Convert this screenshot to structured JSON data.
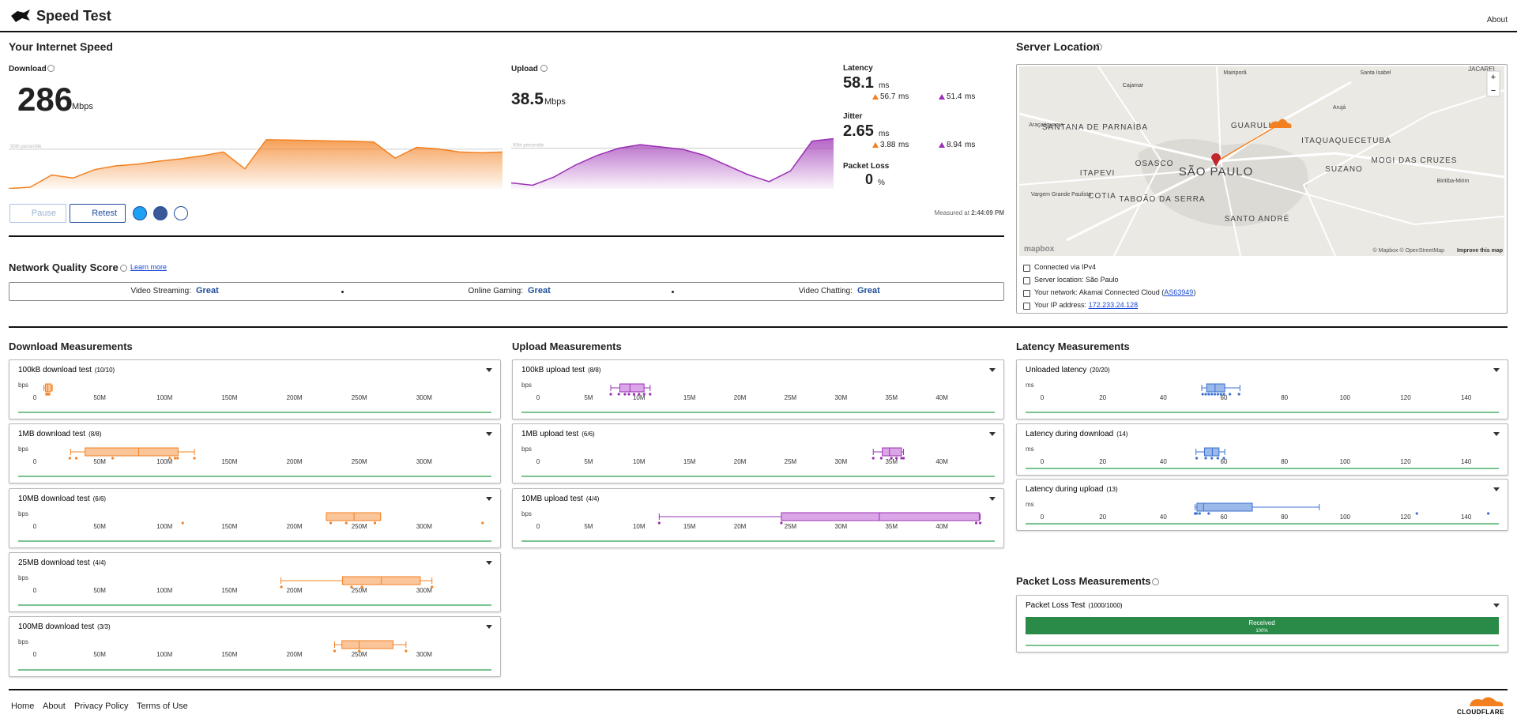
{
  "header": {
    "title": "Speed Test",
    "about": "About"
  },
  "speed": {
    "title": "Your Internet Speed",
    "download": {
      "label": "Download",
      "value": 286,
      "unit": "Mbps",
      "chart": {
        "type": "area",
        "color": "#f38020",
        "ylim": [
          0,
          350
        ],
        "percentile_label": "90th percentile",
        "percentile_value": 258,
        "values": [
          2,
          10,
          90,
          70,
          125,
          150,
          160,
          180,
          195,
          215,
          240,
          130,
          320,
          318,
          315,
          312,
          310,
          305,
          200,
          270,
          260,
          240,
          235,
          240
        ]
      }
    },
    "upload": {
      "label": "Upload",
      "value": 38.5,
      "unit": "Mbps",
      "chart": {
        "type": "area",
        "color": "#9b30b4",
        "ylim": [
          0,
          45
        ],
        "percentile_label": "90th percentile",
        "percentile_value": 34,
        "values": [
          5,
          3,
          10,
          20,
          28,
          34,
          37,
          35,
          33,
          28,
          20,
          12,
          6,
          15,
          40,
          42
        ]
      }
    },
    "latency": {
      "label": "Latency",
      "value": 58.1,
      "unit": "ms",
      "down": 56.7,
      "up": 51.4,
      "sub_unit": "ms"
    },
    "jitter": {
      "label": "Jitter",
      "value": 2.65,
      "unit": "ms",
      "down": 3.88,
      "up": 8.94,
      "sub_unit": "ms"
    },
    "packet_loss": {
      "label": "Packet Loss",
      "value": 0,
      "unit": "%"
    },
    "buttons": {
      "pause": "Pause",
      "retest": "Retest"
    },
    "measured_label": "Measured at",
    "measured_time": "2:44:09 PM"
  },
  "quality": {
    "title": "Network Quality Score",
    "learn_more": "Learn more",
    "items": [
      {
        "label": "Video Streaming:",
        "rating": "Great"
      },
      {
        "label": "Online Gaming:",
        "rating": "Great"
      },
      {
        "label": "Video Chatting:",
        "rating": "Great"
      }
    ]
  },
  "server": {
    "title": "Server Location",
    "map": {
      "places": [
        "SÃO PAULO",
        "GUARULHOS",
        "OSASCO",
        "ITAPEVI",
        "COTIA",
        "TABOÃO DA SERRA",
        "SANTANA DE PARNAÍBA",
        "ITAQUAQUECETUBA",
        "MOGI DAS CRUZES",
        "SUZANO",
        "SANTO ANDRÉ",
        "Cajamar",
        "Mairiporã",
        "Santa Isabel",
        "Arujá",
        "JACAREÍ",
        "Araçariguama",
        "Vargem Grande Paulista",
        "Biritiba-Mirim"
      ],
      "attribution": "© Mapbox © OpenStreetMap",
      "improve": "Improve this map",
      "logo": "mapbox",
      "zoom_in": "+",
      "zoom_out": "−"
    },
    "connected": "Connected via IPv4",
    "location": "Server location: São Paulo",
    "network_label": "Your network: Akamai Connected Cloud (",
    "network_asn": "AS63949",
    "network_close": ")",
    "ip_label": "Your IP address:",
    "ip": "172.233.24.128"
  },
  "download_measurements": {
    "title": "Download Measurements",
    "unit": "bps",
    "xlim": [
      0,
      350
    ],
    "xticks": [
      0,
      {
        "value": 50,
        "label": "50M"
      },
      {
        "value": 100,
        "label": "100M"
      },
      {
        "value": 150,
        "label": "150M"
      },
      {
        "value": 200,
        "label": "200M"
      },
      {
        "value": 250,
        "label": "250M"
      },
      {
        "value": 300,
        "label": "300M"
      }
    ],
    "tests": [
      {
        "name": "100kB download test",
        "count": "(10/10)",
        "whiskers": [
          7,
          13.5
        ],
        "box": [
          8.2,
          12.7
        ],
        "median": 10,
        "points": [
          9,
          10,
          11,
          10.5,
          9.5
        ]
      },
      {
        "name": "1MB download test",
        "count": "(8/8)",
        "whiskers": [
          27.6,
          123
        ],
        "box": [
          38.8,
          110.4
        ],
        "median": 80,
        "points": [
          27,
          32,
          60,
          104,
          108,
          110,
          123
        ]
      },
      {
        "name": "10MB download test",
        "count": "(6/6)",
        "whiskers": [
          224.6,
          266.4
        ],
        "box": [
          224.6,
          266.4
        ],
        "median": 246,
        "points": [
          114,
          228,
          240,
          262,
          345
        ]
      },
      {
        "name": "25MB download test",
        "count": "(4/4)",
        "whiskers": [
          189.6,
          306
        ],
        "box": [
          237,
          297
        ],
        "median": 267,
        "points": [
          190,
          244,
          252,
          306
        ]
      },
      {
        "name": "100MB download test",
        "count": "(3/3)",
        "whiskers": [
          231,
          286
        ],
        "box": [
          236.6,
          276
        ],
        "median": 250,
        "points": [
          231,
          250,
          286
        ]
      }
    ]
  },
  "upload_measurements": {
    "title": "Upload Measurements",
    "unit": "bps",
    "xlim": [
      0,
      45
    ],
    "xticks": [
      0,
      {
        "value": 5,
        "label": "5M"
      },
      {
        "value": 10,
        "label": "10M"
      },
      {
        "value": 15,
        "label": "15M"
      },
      {
        "value": 20,
        "label": "20M"
      },
      {
        "value": 25,
        "label": "25M"
      },
      {
        "value": 30,
        "label": "30M"
      },
      {
        "value": 35,
        "label": "35M"
      },
      {
        "value": 40,
        "label": "40M"
      }
    ],
    "tests": [
      {
        "name": "100kB upload test",
        "count": "(8/8)",
        "whiskers": [
          7.2,
          11.1
        ],
        "box": [
          8.1,
          10.5
        ],
        "median": 9.1,
        "points": [
          7.2,
          8,
          8.6,
          9,
          9.5,
          10,
          10.5,
          11.1
        ]
      },
      {
        "name": "1MB upload test",
        "count": "(6/6)",
        "whiskers": [
          33.2,
          36.2
        ],
        "box": [
          34.1,
          36
        ],
        "median": 34.8,
        "points": [
          33.2,
          34,
          35,
          35.5,
          36,
          36.2
        ]
      },
      {
        "name": "10MB upload test",
        "count": "(4/4)",
        "whiskers": [
          12,
          43.8
        ],
        "box": [
          24.1,
          43.7
        ],
        "median": 33.8,
        "points": [
          12,
          24.1,
          43.4,
          43.8
        ]
      }
    ]
  },
  "latency_measurements": {
    "title": "Latency Measurements",
    "unit": "ms",
    "xlim": [
      0,
      150
    ],
    "xticks": [
      0,
      20,
      40,
      60,
      80,
      100,
      120,
      140
    ],
    "tests": [
      {
        "name": "Unloaded latency",
        "count": "(20/20)",
        "whiskers": [
          52.7,
          65.3
        ],
        "box": [
          54.3,
          60.3
        ],
        "median": 57.1,
        "points": [
          53,
          54,
          55,
          56,
          57,
          58,
          59,
          60,
          62,
          65
        ]
      },
      {
        "name": "Latency during download",
        "count": "(14)",
        "whiskers": [
          50.8,
          60.3
        ],
        "box": [
          53.6,
          58.4
        ],
        "median": 56.2,
        "points": [
          51,
          54,
          56,
          58,
          60
        ]
      },
      {
        "name": "Latency during upload",
        "count": "(13)",
        "whiskers": [
          50.5,
          91.5
        ],
        "box": [
          51.1,
          69.4
        ],
        "median": 53.3,
        "points": [
          50.5,
          51,
          52,
          55,
          123.7,
          147.3
        ]
      }
    ]
  },
  "packet_loss_measurements": {
    "title": "Packet Loss Measurements",
    "name": "Packet Loss Test",
    "count": "(1000/1000)",
    "bar_label": "Received",
    "received": 100,
    "received_label": "100%"
  },
  "footer": {
    "links": [
      "Home",
      "About",
      "Privacy Policy",
      "Terms of Use"
    ],
    "brand": "CLOUDFLARE"
  }
}
